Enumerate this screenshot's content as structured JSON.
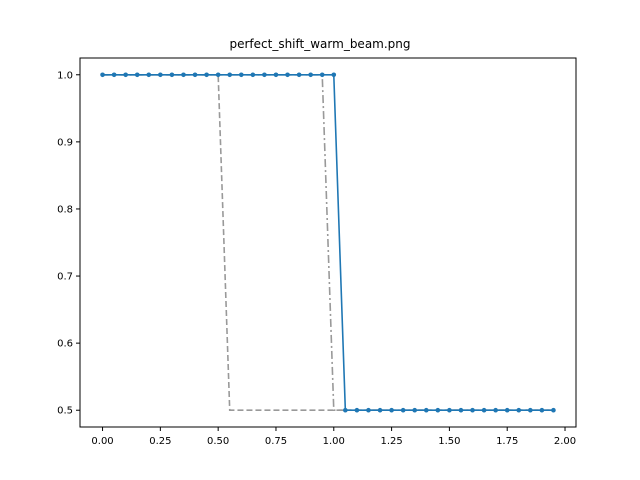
{
  "chart_data": {
    "type": "line",
    "title": "perfect_shift_warm_beam.png",
    "xlabel": "",
    "ylabel": "",
    "xlim": [
      -0.0975,
      2.0475
    ],
    "ylim": [
      0.475,
      1.025
    ],
    "x_ticks": [
      0.0,
      0.25,
      0.5,
      0.75,
      1.0,
      1.25,
      1.5,
      1.75,
      2.0
    ],
    "x_tick_labels": [
      "0.00",
      "0.25",
      "0.50",
      "0.75",
      "1.00",
      "1.25",
      "1.50",
      "1.75",
      "2.00"
    ],
    "y_ticks": [
      0.5,
      0.6,
      0.7,
      0.8,
      0.9,
      1.0
    ],
    "y_tick_labels": [
      "0.5",
      "0.6",
      "0.7",
      "0.8",
      "0.9",
      "1.0"
    ],
    "grid": false,
    "series": [
      {
        "style": "dashed",
        "color": "#999999",
        "x": [
          0.0,
          0.5,
          0.55,
          1.95
        ],
        "y": [
          1.0,
          1.0,
          0.5,
          0.5
        ]
      },
      {
        "style": "dashdot",
        "color": "#999999",
        "x": [
          0.0,
          0.95,
          1.0,
          1.95
        ],
        "y": [
          1.0,
          1.0,
          0.5,
          0.5
        ]
      },
      {
        "style": "solid",
        "marker": "dot",
        "color": "#1f77b4",
        "x": [
          0.0,
          0.05,
          0.1,
          0.15,
          0.2,
          0.25,
          0.3,
          0.35,
          0.4,
          0.45,
          0.5,
          0.55,
          0.6,
          0.65,
          0.7,
          0.75,
          0.8,
          0.85,
          0.9,
          0.95,
          1.0,
          1.05,
          1.1,
          1.15,
          1.2,
          1.25,
          1.3,
          1.35,
          1.4,
          1.45,
          1.5,
          1.55,
          1.6,
          1.65,
          1.7,
          1.75,
          1.8,
          1.85,
          1.9,
          1.95
        ],
        "y": [
          1.0,
          1.0,
          1.0,
          1.0,
          1.0,
          1.0,
          1.0,
          1.0,
          1.0,
          1.0,
          1.0,
          1.0,
          1.0,
          1.0,
          1.0,
          1.0,
          1.0,
          1.0,
          1.0,
          1.0,
          1.0,
          0.5,
          0.5,
          0.5,
          0.5,
          0.5,
          0.5,
          0.5,
          0.5,
          0.5,
          0.5,
          0.5,
          0.5,
          0.5,
          0.5,
          0.5,
          0.5,
          0.5,
          0.5,
          0.5
        ]
      }
    ]
  }
}
